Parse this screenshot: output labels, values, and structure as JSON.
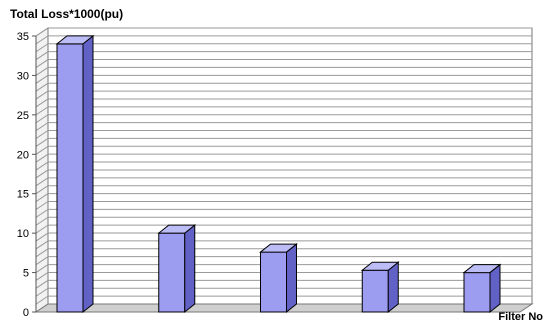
{
  "chart_data": {
    "type": "bar",
    "title": "Total Loss*1000(pu)",
    "xlabel": "Filter No",
    "ylabel": "",
    "ylim": [
      0,
      35
    ],
    "yticks": [
      0,
      5,
      10,
      15,
      20,
      25,
      30,
      35
    ],
    "minor_gridline_step": 1,
    "grid": true,
    "three_d": true,
    "categories": [
      "",
      "",
      "",
      "",
      ""
    ],
    "values": [
      34,
      10,
      7.6,
      5.3,
      5.0
    ],
    "colors": {
      "bar_front": "#9c9cf0",
      "bar_top": "#bcbcf6",
      "bar_side": "#6262c6",
      "bar_edge": "#000000",
      "grid": "#9a9a9a",
      "wall": "#ffffff",
      "floor": "#cfcfcf"
    }
  }
}
